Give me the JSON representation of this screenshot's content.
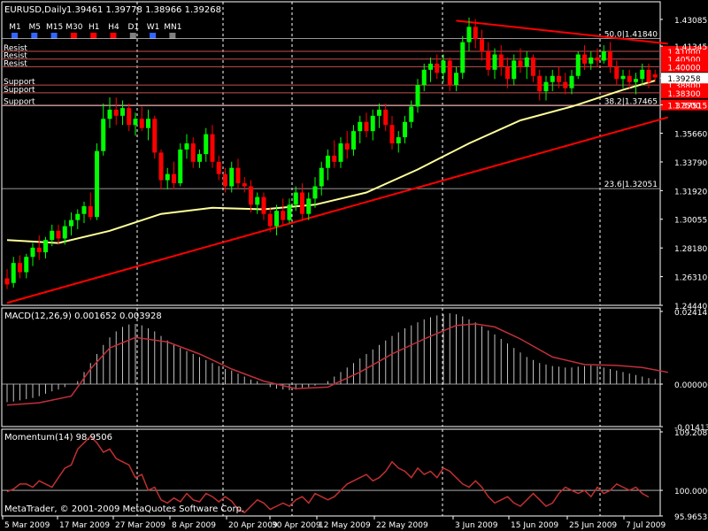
{
  "header": {
    "symbol": "EURUSD,Daily",
    "ohlc": "1.39461 1.39778 1.38966 1.39268"
  },
  "timeframes": [
    {
      "label": "M1",
      "color": "#3366ff"
    },
    {
      "label": "M5",
      "color": "#3366ff"
    },
    {
      "label": "M15",
      "color": "#3366ff"
    },
    {
      "label": "M30",
      "color": "#ff0000"
    },
    {
      "label": "H1",
      "color": "#ff0000"
    },
    {
      "label": "H4",
      "color": "#ff0000"
    },
    {
      "label": "D1",
      "color": "#808080"
    },
    {
      "label": "W1",
      "color": "#3366ff"
    },
    {
      "label": "MN1",
      "color": "#808080"
    }
  ],
  "copyright": "MetaTrader, © 2001-2009 MetaQuotes Software Corp.",
  "colors": {
    "background": "#000000",
    "grid": "#ffffff",
    "bull_candle": "#00ff00",
    "bear_candle": "#ff0000",
    "moving_average": "#ffff99",
    "trendline": "#ff0000",
    "level_line": "#c05050",
    "macd_signal": "#c0303a",
    "momentum": "#c03030",
    "price_marker_bg": "#ffffff",
    "level_marker_bg": "#ff0000"
  },
  "chart_data": [
    {
      "type": "candlestick",
      "title": "EURUSD,Daily",
      "ylim": [
        1.2444,
        1.4308
      ],
      "y_ticks": [
        "1.43085",
        "1.41345",
        "1.39258",
        "1.37515",
        "1.35660",
        "1.33790",
        "1.31920",
        "1.30055",
        "1.28180",
        "1.26310",
        "1.24440"
      ],
      "current_price": "1.39258",
      "x_ticks": [
        "5 Mar 2009",
        "17 Mar 2009",
        "27 Mar 2009",
        "8 Apr 2009",
        "20 Apr 2009",
        "30 Apr 2009",
        "12 May 2009",
        "22 May 2009",
        "3 Jun 2009",
        "15 Jun 2009",
        "25 Jun 2009",
        "7 Jul 2009"
      ],
      "candles": [
        {
          "o": 1.262,
          "h": 1.268,
          "l": 1.255,
          "c": 1.258
        },
        {
          "o": 1.259,
          "h": 1.276,
          "l": 1.256,
          "c": 1.272
        },
        {
          "o": 1.272,
          "h": 1.277,
          "l": 1.262,
          "c": 1.266
        },
        {
          "o": 1.266,
          "h": 1.278,
          "l": 1.262,
          "c": 1.276
        },
        {
          "o": 1.276,
          "h": 1.285,
          "l": 1.27,
          "c": 1.282
        },
        {
          "o": 1.282,
          "h": 1.29,
          "l": 1.274,
          "c": 1.279
        },
        {
          "o": 1.279,
          "h": 1.289,
          "l": 1.275,
          "c": 1.287
        },
        {
          "o": 1.287,
          "h": 1.297,
          "l": 1.283,
          "c": 1.293
        },
        {
          "o": 1.293,
          "h": 1.297,
          "l": 1.284,
          "c": 1.288
        },
        {
          "o": 1.288,
          "h": 1.3,
          "l": 1.284,
          "c": 1.296
        },
        {
          "o": 1.296,
          "h": 1.305,
          "l": 1.29,
          "c": 1.3
        },
        {
          "o": 1.3,
          "h": 1.307,
          "l": 1.294,
          "c": 1.304
        },
        {
          "o": 1.304,
          "h": 1.312,
          "l": 1.298,
          "c": 1.309
        },
        {
          "o": 1.309,
          "h": 1.318,
          "l": 1.3,
          "c": 1.302
        },
        {
          "o": 1.302,
          "h": 1.35,
          "l": 1.3,
          "c": 1.345
        },
        {
          "o": 1.345,
          "h": 1.376,
          "l": 1.342,
          "c": 1.366
        },
        {
          "o": 1.366,
          "h": 1.38,
          "l": 1.36,
          "c": 1.372
        },
        {
          "o": 1.372,
          "h": 1.38,
          "l": 1.362,
          "c": 1.368
        },
        {
          "o": 1.368,
          "h": 1.378,
          "l": 1.362,
          "c": 1.373
        },
        {
          "o": 1.373,
          "h": 1.376,
          "l": 1.358,
          "c": 1.362
        },
        {
          "o": 1.362,
          "h": 1.37,
          "l": 1.355,
          "c": 1.366
        },
        {
          "o": 1.366,
          "h": 1.374,
          "l": 1.358,
          "c": 1.36
        },
        {
          "o": 1.36,
          "h": 1.372,
          "l": 1.352,
          "c": 1.366
        },
        {
          "o": 1.366,
          "h": 1.368,
          "l": 1.34,
          "c": 1.344
        },
        {
          "o": 1.344,
          "h": 1.346,
          "l": 1.32,
          "c": 1.326
        },
        {
          "o": 1.326,
          "h": 1.334,
          "l": 1.32,
          "c": 1.33
        },
        {
          "o": 1.33,
          "h": 1.338,
          "l": 1.32,
          "c": 1.324
        },
        {
          "o": 1.324,
          "h": 1.35,
          "l": 1.322,
          "c": 1.346
        },
        {
          "o": 1.346,
          "h": 1.356,
          "l": 1.34,
          "c": 1.35
        },
        {
          "o": 1.35,
          "h": 1.354,
          "l": 1.334,
          "c": 1.338
        },
        {
          "o": 1.338,
          "h": 1.346,
          "l": 1.334,
          "c": 1.343
        },
        {
          "o": 1.343,
          "h": 1.36,
          "l": 1.338,
          "c": 1.356
        },
        {
          "o": 1.356,
          "h": 1.362,
          "l": 1.334,
          "c": 1.338
        },
        {
          "o": 1.338,
          "h": 1.342,
          "l": 1.326,
          "c": 1.33
        },
        {
          "o": 1.33,
          "h": 1.334,
          "l": 1.318,
          "c": 1.322
        },
        {
          "o": 1.322,
          "h": 1.338,
          "l": 1.318,
          "c": 1.334
        },
        {
          "o": 1.334,
          "h": 1.34,
          "l": 1.32,
          "c": 1.324
        },
        {
          "o": 1.324,
          "h": 1.328,
          "l": 1.318,
          "c": 1.322
        },
        {
          "o": 1.322,
          "h": 1.326,
          "l": 1.305,
          "c": 1.31
        },
        {
          "o": 1.31,
          "h": 1.318,
          "l": 1.304,
          "c": 1.315
        },
        {
          "o": 1.315,
          "h": 1.318,
          "l": 1.3,
          "c": 1.304
        },
        {
          "o": 1.304,
          "h": 1.308,
          "l": 1.292,
          "c": 1.296
        },
        {
          "o": 1.296,
          "h": 1.31,
          "l": 1.29,
          "c": 1.306
        },
        {
          "o": 1.306,
          "h": 1.314,
          "l": 1.296,
          "c": 1.3
        },
        {
          "o": 1.3,
          "h": 1.314,
          "l": 1.298,
          "c": 1.31
        },
        {
          "o": 1.31,
          "h": 1.322,
          "l": 1.306,
          "c": 1.318
        },
        {
          "o": 1.318,
          "h": 1.324,
          "l": 1.3,
          "c": 1.304
        },
        {
          "o": 1.304,
          "h": 1.318,
          "l": 1.3,
          "c": 1.314
        },
        {
          "o": 1.314,
          "h": 1.328,
          "l": 1.308,
          "c": 1.322
        },
        {
          "o": 1.322,
          "h": 1.338,
          "l": 1.316,
          "c": 1.334
        },
        {
          "o": 1.334,
          "h": 1.346,
          "l": 1.326,
          "c": 1.342
        },
        {
          "o": 1.342,
          "h": 1.352,
          "l": 1.334,
          "c": 1.338
        },
        {
          "o": 1.338,
          "h": 1.354,
          "l": 1.334,
          "c": 1.35
        },
        {
          "o": 1.35,
          "h": 1.358,
          "l": 1.34,
          "c": 1.346
        },
        {
          "o": 1.346,
          "h": 1.362,
          "l": 1.342,
          "c": 1.358
        },
        {
          "o": 1.358,
          "h": 1.368,
          "l": 1.35,
          "c": 1.364
        },
        {
          "o": 1.364,
          "h": 1.37,
          "l": 1.354,
          "c": 1.358
        },
        {
          "o": 1.358,
          "h": 1.372,
          "l": 1.352,
          "c": 1.368
        },
        {
          "o": 1.368,
          "h": 1.376,
          "l": 1.36,
          "c": 1.372
        },
        {
          "o": 1.372,
          "h": 1.376,
          "l": 1.358,
          "c": 1.362
        },
        {
          "o": 1.362,
          "h": 1.368,
          "l": 1.346,
          "c": 1.35
        },
        {
          "o": 1.35,
          "h": 1.358,
          "l": 1.344,
          "c": 1.354
        },
        {
          "o": 1.354,
          "h": 1.368,
          "l": 1.35,
          "c": 1.364
        },
        {
          "o": 1.364,
          "h": 1.378,
          "l": 1.36,
          "c": 1.374
        },
        {
          "o": 1.374,
          "h": 1.392,
          "l": 1.37,
          "c": 1.388
        },
        {
          "o": 1.388,
          "h": 1.402,
          "l": 1.384,
          "c": 1.398
        },
        {
          "o": 1.398,
          "h": 1.406,
          "l": 1.39,
          "c": 1.402
        },
        {
          "o": 1.402,
          "h": 1.408,
          "l": 1.392,
          "c": 1.396
        },
        {
          "o": 1.396,
          "h": 1.408,
          "l": 1.39,
          "c": 1.404
        },
        {
          "o": 1.404,
          "h": 1.406,
          "l": 1.384,
          "c": 1.388
        },
        {
          "o": 1.388,
          "h": 1.4,
          "l": 1.384,
          "c": 1.396
        },
        {
          "o": 1.396,
          "h": 1.42,
          "l": 1.392,
          "c": 1.416
        },
        {
          "o": 1.416,
          "h": 1.432,
          "l": 1.41,
          "c": 1.426
        },
        {
          "o": 1.426,
          "h": 1.431,
          "l": 1.412,
          "c": 1.418
        },
        {
          "o": 1.418,
          "h": 1.424,
          "l": 1.404,
          "c": 1.41
        },
        {
          "o": 1.41,
          "h": 1.416,
          "l": 1.394,
          "c": 1.398
        },
        {
          "o": 1.398,
          "h": 1.412,
          "l": 1.392,
          "c": 1.408
        },
        {
          "o": 1.408,
          "h": 1.414,
          "l": 1.394,
          "c": 1.4
        },
        {
          "o": 1.4,
          "h": 1.406,
          "l": 1.386,
          "c": 1.392
        },
        {
          "o": 1.392,
          "h": 1.408,
          "l": 1.388,
          "c": 1.404
        },
        {
          "o": 1.404,
          "h": 1.412,
          "l": 1.396,
          "c": 1.4
        },
        {
          "o": 1.4,
          "h": 1.41,
          "l": 1.392,
          "c": 1.406
        },
        {
          "o": 1.406,
          "h": 1.408,
          "l": 1.39,
          "c": 1.394
        },
        {
          "o": 1.394,
          "h": 1.398,
          "l": 1.378,
          "c": 1.384
        },
        {
          "o": 1.384,
          "h": 1.394,
          "l": 1.378,
          "c": 1.39
        },
        {
          "o": 1.39,
          "h": 1.398,
          "l": 1.384,
          "c": 1.394
        },
        {
          "o": 1.394,
          "h": 1.4,
          "l": 1.386,
          "c": 1.39
        },
        {
          "o": 1.39,
          "h": 1.396,
          "l": 1.382,
          "c": 1.386
        },
        {
          "o": 1.386,
          "h": 1.398,
          "l": 1.382,
          "c": 1.394
        },
        {
          "o": 1.394,
          "h": 1.41,
          "l": 1.392,
          "c": 1.408
        },
        {
          "o": 1.408,
          "h": 1.414,
          "l": 1.398,
          "c": 1.402
        },
        {
          "o": 1.402,
          "h": 1.41,
          "l": 1.398,
          "c": 1.406
        },
        {
          "o": 1.406,
          "h": 1.412,
          "l": 1.4,
          "c": 1.404
        },
        {
          "o": 1.404,
          "h": 1.414,
          "l": 1.402,
          "c": 1.41
        },
        {
          "o": 1.41,
          "h": 1.416,
          "l": 1.396,
          "c": 1.4
        },
        {
          "o": 1.4,
          "h": 1.404,
          "l": 1.388,
          "c": 1.392
        },
        {
          "o": 1.392,
          "h": 1.398,
          "l": 1.386,
          "c": 1.394
        },
        {
          "o": 1.394,
          "h": 1.398,
          "l": 1.386,
          "c": 1.39
        },
        {
          "o": 1.39,
          "h": 1.396,
          "l": 1.382,
          "c": 1.392
        },
        {
          "o": 1.392,
          "h": 1.402,
          "l": 1.388,
          "c": 1.398
        },
        {
          "o": 1.398,
          "h": 1.402,
          "l": 1.386,
          "c": 1.39
        },
        {
          "o": 1.395,
          "h": 1.398,
          "l": 1.39,
          "c": 1.393
        }
      ],
      "moving_average": [
        [
          0,
          1.287
        ],
        [
          8,
          1.285
        ],
        [
          16,
          1.293
        ],
        [
          24,
          1.304
        ],
        [
          32,
          1.308
        ],
        [
          40,
          1.307
        ],
        [
          48,
          1.31
        ],
        [
          56,
          1.318
        ],
        [
          64,
          1.333
        ],
        [
          72,
          1.35
        ],
        [
          80,
          1.365
        ],
        [
          88,
          1.374
        ],
        [
          96,
          1.385
        ],
        [
          101,
          1.391
        ]
      ],
      "horizontal_levels": [
        {
          "label": "Resist",
          "price": 1.41,
          "marker": "1.41000"
        },
        {
          "label": "Resist",
          "price": 1.405,
          "marker": "1.40500"
        },
        {
          "label": "Resist",
          "price": 1.4,
          "marker": "1.40000"
        },
        {
          "label": "Support",
          "price": 1.388,
          "marker": "1.38800"
        },
        {
          "label": "Support",
          "price": 1.383,
          "marker": "1.38300"
        },
        {
          "label": "Support",
          "price": 1.375,
          "marker": "1.37500"
        }
      ],
      "fib_levels": [
        {
          "label": "50.0|1.41840",
          "price": 1.4184
        },
        {
          "label": "38.2|1.37465",
          "price": 1.37465
        },
        {
          "label": "23.6|1.32051",
          "price": 1.32051
        }
      ],
      "trendlines": [
        {
          "x1": 0,
          "y1": 1.246,
          "x2": 103,
          "y2": 1.367
        },
        {
          "x1": 70,
          "y1": 1.43,
          "x2": 103,
          "y2": 1.415
        }
      ]
    },
    {
      "type": "bar",
      "title": "MACD(12,26,9) 0.001652 0.003928",
      "ylim": [
        -0.0141,
        0.0241
      ],
      "y_ticks": [
        "0.024143",
        "0.000000",
        "-0.014131"
      ],
      "histogram": [
        -0.006,
        -0.0058,
        -0.0054,
        -0.005,
        -0.0046,
        -0.004,
        -0.0032,
        -0.0024,
        -0.0018,
        -0.001,
        0.0,
        0.001,
        0.004,
        0.007,
        0.01,
        0.013,
        0.0155,
        0.0175,
        0.019,
        0.0198,
        0.02,
        0.0195,
        0.0185,
        0.0175,
        0.016,
        0.0145,
        0.013,
        0.012,
        0.011,
        0.01,
        0.009,
        0.008,
        0.007,
        0.006,
        0.005,
        0.0045,
        0.0035,
        0.0025,
        0.0015,
        0.001,
        0.0,
        -0.001,
        -0.0015,
        -0.0018,
        -0.002,
        -0.0018,
        -0.0015,
        -0.001,
        -0.0005,
        0.0,
        0.001,
        0.0025,
        0.004,
        0.0055,
        0.007,
        0.0085,
        0.01,
        0.0115,
        0.013,
        0.0145,
        0.016,
        0.0172,
        0.0185,
        0.0195,
        0.0205,
        0.0215,
        0.0222,
        0.0228,
        0.0232,
        0.0235,
        0.0232,
        0.0225,
        0.0215,
        0.0205,
        0.0192,
        0.0178,
        0.0165,
        0.015,
        0.0135,
        0.012,
        0.0105,
        0.009,
        0.008,
        0.007,
        0.0065,
        0.006,
        0.0058,
        0.0055,
        0.0055,
        0.0058,
        0.006,
        0.0062,
        0.006,
        0.0055,
        0.005,
        0.0045,
        0.004,
        0.0035,
        0.003,
        0.0025,
        0.002,
        0.0017
      ],
      "signal": [
        [
          0,
          -0.007
        ],
        [
          5,
          -0.0062
        ],
        [
          10,
          -0.004
        ],
        [
          13,
          0.005
        ],
        [
          16,
          0.012
        ],
        [
          20,
          0.0155
        ],
        [
          25,
          0.014
        ],
        [
          30,
          0.01
        ],
        [
          35,
          0.005
        ],
        [
          40,
          0.001
        ],
        [
          45,
          -0.0015
        ],
        [
          50,
          -0.001
        ],
        [
          55,
          0.004
        ],
        [
          60,
          0.01
        ],
        [
          65,
          0.015
        ],
        [
          70,
          0.0195
        ],
        [
          73,
          0.02
        ],
        [
          76,
          0.019
        ],
        [
          80,
          0.015
        ],
        [
          85,
          0.009
        ],
        [
          90,
          0.0065
        ],
        [
          95,
          0.0062
        ],
        [
          99,
          0.0055
        ],
        [
          103,
          0.0039
        ]
      ]
    },
    {
      "type": "line",
      "title": "Momentum(14) 98.9506",
      "ylim": [
        95.9653,
        109.2081
      ],
      "y_ticks": [
        "109.2081",
        "100.0000",
        "95.9653"
      ],
      "values": [
        99.8,
        100.2,
        101.0,
        101.0,
        100.5,
        101.5,
        101.0,
        100.5,
        102.0,
        103.5,
        104.0,
        106.5,
        107.5,
        108.5,
        107.5,
        106.0,
        106.5,
        105.0,
        104.5,
        104.0,
        102.0,
        102.5,
        100.0,
        100.5,
        98.5,
        98.0,
        98.8,
        98.2,
        99.5,
        98.5,
        98.2,
        99.5,
        99.0,
        98.2,
        99.0,
        98.3,
        97.0,
        96.5,
        97.5,
        98.5,
        98.0,
        97.0,
        97.5,
        98.0,
        97.5,
        98.5,
        99.0,
        98.0,
        99.5,
        99.0,
        98.5,
        99.0,
        100.0,
        101.0,
        101.5,
        102.0,
        102.5,
        101.5,
        102.0,
        103.0,
        104.5,
        103.5,
        103.0,
        102.0,
        103.5,
        102.5,
        103.0,
        102.0,
        103.5,
        103.0,
        102.0,
        101.0,
        100.5,
        101.5,
        100.5,
        99.0,
        98.0,
        98.5,
        99.0,
        98.0,
        97.5,
        98.5,
        99.5,
        98.5,
        97.5,
        98.0,
        99.5,
        100.5,
        100.0,
        99.5,
        100.0,
        99.0,
        100.5,
        99.5,
        100.0,
        101.0,
        100.5,
        100.0,
        100.5,
        99.5,
        98.95
      ]
    }
  ]
}
